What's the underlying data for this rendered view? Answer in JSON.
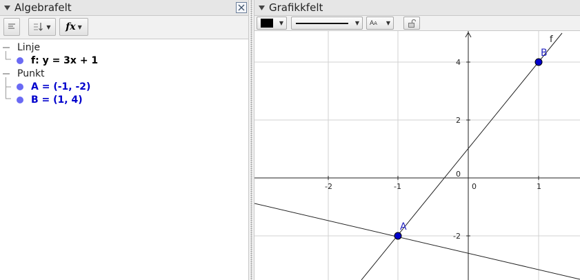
{
  "algebra": {
    "title": "Algebrafelt",
    "categories": [
      {
        "label": "Linje",
        "items": [
          {
            "text": "f: y = 3x + 1",
            "color": "#000000"
          }
        ]
      },
      {
        "label": "Punkt",
        "items": [
          {
            "text": "A = (-1, -2)",
            "color": "#0000cc"
          },
          {
            "text": "B = (1, 4)",
            "color": "#0000cc"
          }
        ]
      }
    ]
  },
  "graphics": {
    "title": "Grafikkfelt",
    "style_bar": {
      "color_swatch": "#000000"
    },
    "axes": {
      "x_ticks": [
        "-2",
        "-1",
        "0",
        "1"
      ],
      "y_ticks": [
        "4",
        "2",
        "0",
        "-2"
      ]
    },
    "lines": {
      "f_label": "f"
    },
    "points": [
      {
        "name": "A",
        "x": -1,
        "y": -2,
        "color": "#0000cc"
      },
      {
        "name": "B",
        "x": 1,
        "y": 4,
        "color": "#0000cc"
      }
    ]
  }
}
